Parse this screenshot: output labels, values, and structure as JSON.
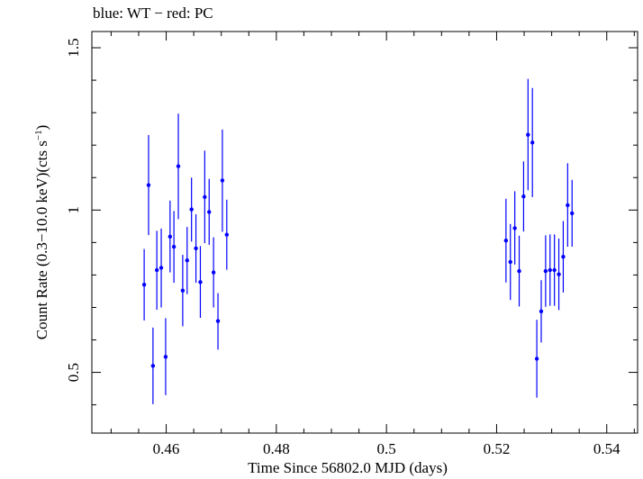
{
  "chart_data": {
    "type": "scatter",
    "title": "blue: WT − red: PC",
    "xlabel": "Time Since 56802.0 MJD (days)",
    "ylabel_main": "Count Rate (0.3−10.0 keV)(cts s",
    "ylabel_sup": "−1",
    "ylabel_close": ")",
    "xlim": [
      0.4465,
      0.5456
    ],
    "ylim": [
      0.313,
      1.55
    ],
    "x_ticks": [
      {
        "value": 0.46,
        "label": "0.46"
      },
      {
        "value": 0.48,
        "label": "0.48"
      },
      {
        "value": 0.5,
        "label": "0.5"
      },
      {
        "value": 0.52,
        "label": "0.52"
      },
      {
        "value": 0.54,
        "label": "0.54"
      }
    ],
    "y_ticks": [
      {
        "value": 0.5,
        "label": "0.5"
      },
      {
        "value": 1.0,
        "label": "1"
      },
      {
        "value": 1.5,
        "label": "1.5"
      }
    ],
    "grid": false,
    "series": [
      {
        "color": "#0000ff",
        "marker": "point-with-errorbars",
        "points": [
          {
            "x": 0.456,
            "y": 0.77,
            "ylo": 0.66,
            "yhi": 0.88
          },
          {
            "x": 0.4568,
            "y": 1.077,
            "ylo": 0.923,
            "yhi": 1.231
          },
          {
            "x": 0.4576,
            "y": 0.52,
            "ylo": 0.402,
            "yhi": 0.638
          },
          {
            "x": 0.4583,
            "y": 0.815,
            "ylo": 0.693,
            "yhi": 0.936
          },
          {
            "x": 0.4591,
            "y": 0.822,
            "ylo": 0.7,
            "yhi": 0.943
          },
          {
            "x": 0.4599,
            "y": 0.548,
            "ylo": 0.43,
            "yhi": 0.667
          },
          {
            "x": 0.4607,
            "y": 0.918,
            "ylo": 0.808,
            "yhi": 1.029
          },
          {
            "x": 0.4614,
            "y": 0.887,
            "ylo": 0.776,
            "yhi": 0.997
          },
          {
            "x": 0.4622,
            "y": 1.135,
            "ylo": 0.972,
            "yhi": 1.297
          },
          {
            "x": 0.463,
            "y": 0.752,
            "ylo": 0.642,
            "yhi": 0.862
          },
          {
            "x": 0.4638,
            "y": 0.845,
            "ylo": 0.741,
            "yhi": 0.948
          },
          {
            "x": 0.4646,
            "y": 1.002,
            "ylo": 0.903,
            "yhi": 1.1
          },
          {
            "x": 0.4654,
            "y": 0.882,
            "ylo": 0.776,
            "yhi": 0.987
          },
          {
            "x": 0.4662,
            "y": 0.778,
            "ylo": 0.668,
            "yhi": 0.889
          },
          {
            "x": 0.467,
            "y": 1.04,
            "ylo": 0.898,
            "yhi": 1.183
          },
          {
            "x": 0.4678,
            "y": 0.994,
            "ylo": 0.893,
            "yhi": 1.096
          },
          {
            "x": 0.4686,
            "y": 0.808,
            "ylo": 0.7,
            "yhi": 0.916
          },
          {
            "x": 0.4694,
            "y": 0.658,
            "ylo": 0.57,
            "yhi": 0.744
          },
          {
            "x": 0.4702,
            "y": 1.091,
            "ylo": 0.933,
            "yhi": 1.248
          },
          {
            "x": 0.471,
            "y": 0.924,
            "ylo": 0.816,
            "yhi": 1.032
          },
          {
            "x": 0.5217,
            "y": 0.906,
            "ylo": 0.777,
            "yhi": 1.035
          },
          {
            "x": 0.5225,
            "y": 0.84,
            "ylo": 0.723,
            "yhi": 0.957
          },
          {
            "x": 0.5233,
            "y": 0.944,
            "ylo": 0.832,
            "yhi": 1.058
          },
          {
            "x": 0.5241,
            "y": 0.812,
            "ylo": 0.703,
            "yhi": 0.921
          },
          {
            "x": 0.5249,
            "y": 1.042,
            "ylo": 0.934,
            "yhi": 1.15
          },
          {
            "x": 0.5257,
            "y": 1.232,
            "ylo": 1.061,
            "yhi": 1.404
          },
          {
            "x": 0.5265,
            "y": 1.208,
            "ylo": 1.04,
            "yhi": 1.376
          },
          {
            "x": 0.5273,
            "y": 0.542,
            "ylo": 0.422,
            "yhi": 0.662
          },
          {
            "x": 0.5281,
            "y": 0.688,
            "ylo": 0.592,
            "yhi": 0.784
          },
          {
            "x": 0.5289,
            "y": 0.812,
            "ylo": 0.702,
            "yhi": 0.922
          },
          {
            "x": 0.5297,
            "y": 0.815,
            "ylo": 0.705,
            "yhi": 0.925
          },
          {
            "x": 0.5305,
            "y": 0.815,
            "ylo": 0.705,
            "yhi": 0.925
          },
          {
            "x": 0.5313,
            "y": 0.802,
            "ylo": 0.692,
            "yhi": 0.912
          },
          {
            "x": 0.5321,
            "y": 0.856,
            "ylo": 0.746,
            "yhi": 0.966
          },
          {
            "x": 0.5329,
            "y": 1.015,
            "ylo": 0.887,
            "yhi": 1.144
          },
          {
            "x": 0.5337,
            "y": 0.99,
            "ylo": 0.887,
            "yhi": 1.093
          }
        ]
      }
    ]
  }
}
